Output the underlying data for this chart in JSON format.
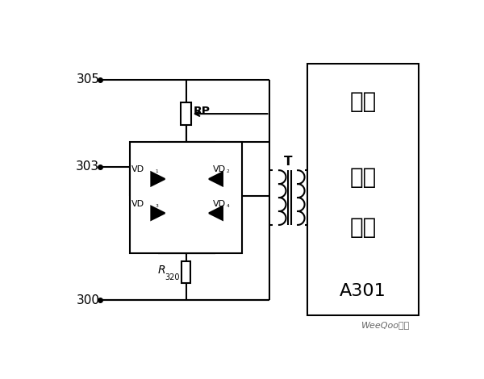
{
  "bg_color": "#ffffff",
  "line_color": "#000000",
  "watermark": "WeeQoo维库",
  "rp_label": "RP",
  "r320_label_main": "R",
  "r320_label_sub": "320",
  "vd1_label": "VD",
  "vd1_sub": "1",
  "vd2_label": "VD",
  "vd2_sub": "2",
  "vd3_label": "VD",
  "vd3_sub": "3",
  "vd4_label": "VD",
  "vd4_sub": "4",
  "box_line1": "逆变",
  "box_line2": "触发",
  "box_line3": "电路",
  "box_line4": "A301",
  "transformer_label": "T",
  "node305": "305",
  "node303": "303",
  "node300": "300"
}
